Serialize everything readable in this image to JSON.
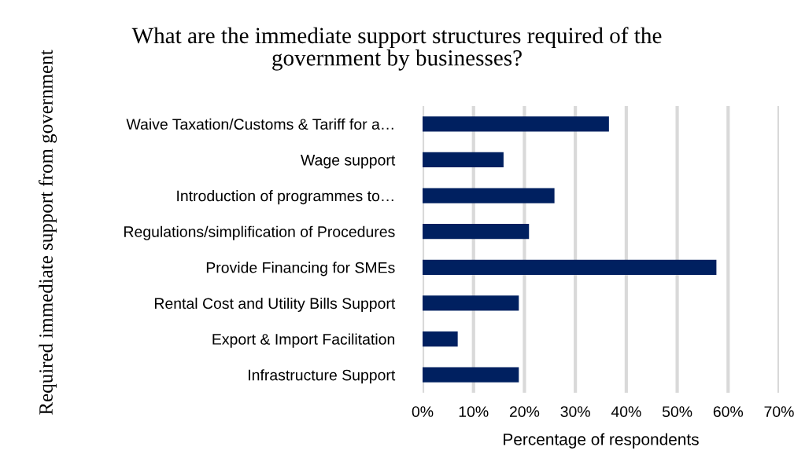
{
  "chart_data": {
    "type": "bar",
    "orientation": "horizontal",
    "title": "What are the immediate support structures required of the\ngovernment by businesses?",
    "xlabel": "Percentage of respondents",
    "ylabel": "Required immediate support from government",
    "categories": [
      "Waive Taxation/Customs & Tariff for a…",
      "Wage support",
      "Introduction of programmes to…",
      "Regulations/simplification of Procedures",
      "Provide Financing for SMEs",
      "Rental Cost and Utility Bills Support",
      "Export & Import Facilitation",
      "Infrastructure Support"
    ],
    "values": [
      36.6,
      15.9,
      25.9,
      20.9,
      57.7,
      18.9,
      6.9,
      18.9
    ],
    "color": "#002060",
    "xlim": [
      0,
      70
    ],
    "xticks": [
      {
        "value": 0,
        "label": "0%"
      },
      {
        "value": 10,
        "label": "10%"
      },
      {
        "value": 20,
        "label": "20%"
      },
      {
        "value": 30,
        "label": "30%"
      },
      {
        "value": 40,
        "label": "40%"
      },
      {
        "value": 50,
        "label": "50%"
      },
      {
        "value": 60,
        "label": "60%"
      },
      {
        "value": 70,
        "label": "70%"
      }
    ],
    "grid": "x"
  }
}
